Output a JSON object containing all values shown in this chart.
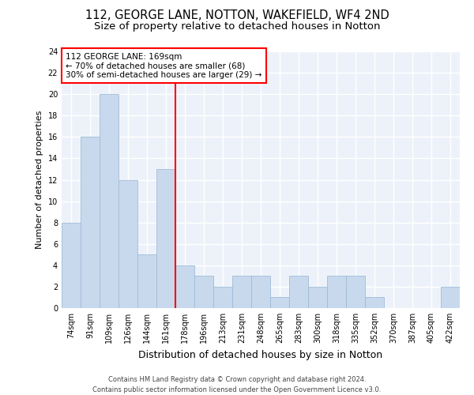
{
  "title1": "112, GEORGE LANE, NOTTON, WAKEFIELD, WF4 2ND",
  "title2": "Size of property relative to detached houses in Notton",
  "xlabel": "Distribution of detached houses by size in Notton",
  "ylabel": "Number of detached properties",
  "categories": [
    "74sqm",
    "91sqm",
    "109sqm",
    "126sqm",
    "144sqm",
    "161sqm",
    "178sqm",
    "196sqm",
    "213sqm",
    "231sqm",
    "248sqm",
    "265sqm",
    "283sqm",
    "300sqm",
    "318sqm",
    "335sqm",
    "352sqm",
    "370sqm",
    "387sqm",
    "405sqm",
    "422sqm"
  ],
  "values": [
    8,
    16,
    20,
    12,
    5,
    13,
    4,
    3,
    2,
    3,
    3,
    1,
    3,
    2,
    3,
    3,
    1,
    0,
    0,
    0,
    2
  ],
  "bar_color": "#c8d9ed",
  "bar_edge_color": "#a0bcd8",
  "vline_x": 6.0,
  "vline_color": "red",
  "annotation_text": "112 GEORGE LANE: 169sqm\n← 70% of detached houses are smaller (68)\n30% of semi-detached houses are larger (29) →",
  "ylim": [
    0,
    24
  ],
  "yticks": [
    0,
    2,
    4,
    6,
    8,
    10,
    12,
    14,
    16,
    18,
    20,
    22,
    24
  ],
  "footer": "Contains HM Land Registry data © Crown copyright and database right 2024.\nContains public sector information licensed under the Open Government Licence v3.0.",
  "bg_color": "#edf2fa",
  "grid_color": "white",
  "title1_fontsize": 10.5,
  "title2_fontsize": 9.5,
  "xlabel_fontsize": 9,
  "ylabel_fontsize": 8,
  "tick_fontsize": 7,
  "ann_fontsize": 7.5,
  "footer_fontsize": 6
}
